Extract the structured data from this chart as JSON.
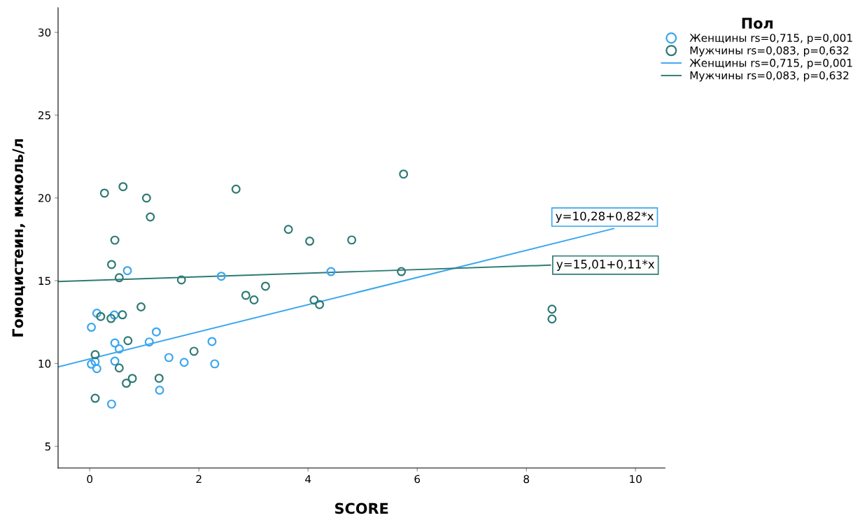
{
  "chart_data": {
    "type": "scatter",
    "xlabel": "SCORE",
    "ylabel": "Гомоцистеин, мкмоль/л",
    "legend_title": "Пол",
    "legend": "top right",
    "grid": false,
    "marker": "circle",
    "xlim": [
      -0.58,
      10.54
    ],
    "ylim": [
      3.69,
      31.48
    ],
    "xticks": [
      0,
      2,
      4,
      6,
      8,
      10
    ],
    "yticks": [
      5,
      10,
      15,
      20,
      25,
      30
    ],
    "series": [
      {
        "name": "Женщины rs=0,715, p=0,001",
        "color": "#3aa6f0",
        "x": [
          0.69,
          2.41,
          4.42,
          0.13,
          0.45,
          0.03,
          1.22,
          0.46,
          1.09,
          0.54,
          2.24,
          0.03,
          0.1,
          0.13,
          0.46,
          1.45,
          1.73,
          2.29,
          1.28,
          0.4
        ],
        "values": [
          15.61,
          15.27,
          15.55,
          13.04,
          12.93,
          12.19,
          11.91,
          11.24,
          11.3,
          10.88,
          11.33,
          9.96,
          10.11,
          9.69,
          10.14,
          10.36,
          10.07,
          9.98,
          8.39,
          7.55
        ]
      },
      {
        "name": "Мужчины rs=0,083, p=0,632",
        "color": "#2e7a74",
        "x": [
          0.27,
          0.61,
          1.04,
          1.11,
          0.46,
          0.4,
          0.54,
          1.68,
          2.68,
          2.86,
          0.94,
          0.2,
          0.39,
          0.6,
          0.7,
          1.91,
          0.1,
          0.54,
          0.78,
          0.67,
          1.27,
          0.1,
          3.64,
          4.03,
          4.8,
          5.75,
          5.71,
          3.01,
          3.22,
          4.11,
          4.21,
          8.47,
          8.47
        ],
        "values": [
          20.29,
          20.68,
          19.99,
          18.85,
          17.45,
          15.98,
          15.18,
          15.05,
          20.53,
          14.12,
          13.42,
          12.84,
          12.72,
          12.94,
          11.38,
          10.74,
          10.53,
          9.73,
          9.1,
          8.81,
          9.11,
          7.9,
          18.1,
          17.39,
          17.46,
          21.44,
          15.55,
          13.84,
          14.67,
          13.83,
          13.56,
          13.28,
          12.69
        ]
      },
      {
        "name": "Женщины rs=0,715, p=0,001",
        "color": "#3aa6f0",
        "type": "line",
        "marker": "none",
        "x": [
          -0.58,
          9.6
        ],
        "values": [
          9.8,
          18.15
        ]
      },
      {
        "name": "Мужчины rs=0,083, p=0,632",
        "color": "#2e7a74",
        "type": "line",
        "marker": "none",
        "x": [
          -0.58,
          8.44
        ],
        "values": [
          14.95,
          15.94
        ]
      }
    ],
    "annotations": [
      {
        "text": "y=10,28+0,82*x",
        "x": 9.6,
        "y": 18.15
      },
      {
        "text": "y=15,01+0,11*x",
        "x": 8.44,
        "y": 15.94
      }
    ]
  }
}
